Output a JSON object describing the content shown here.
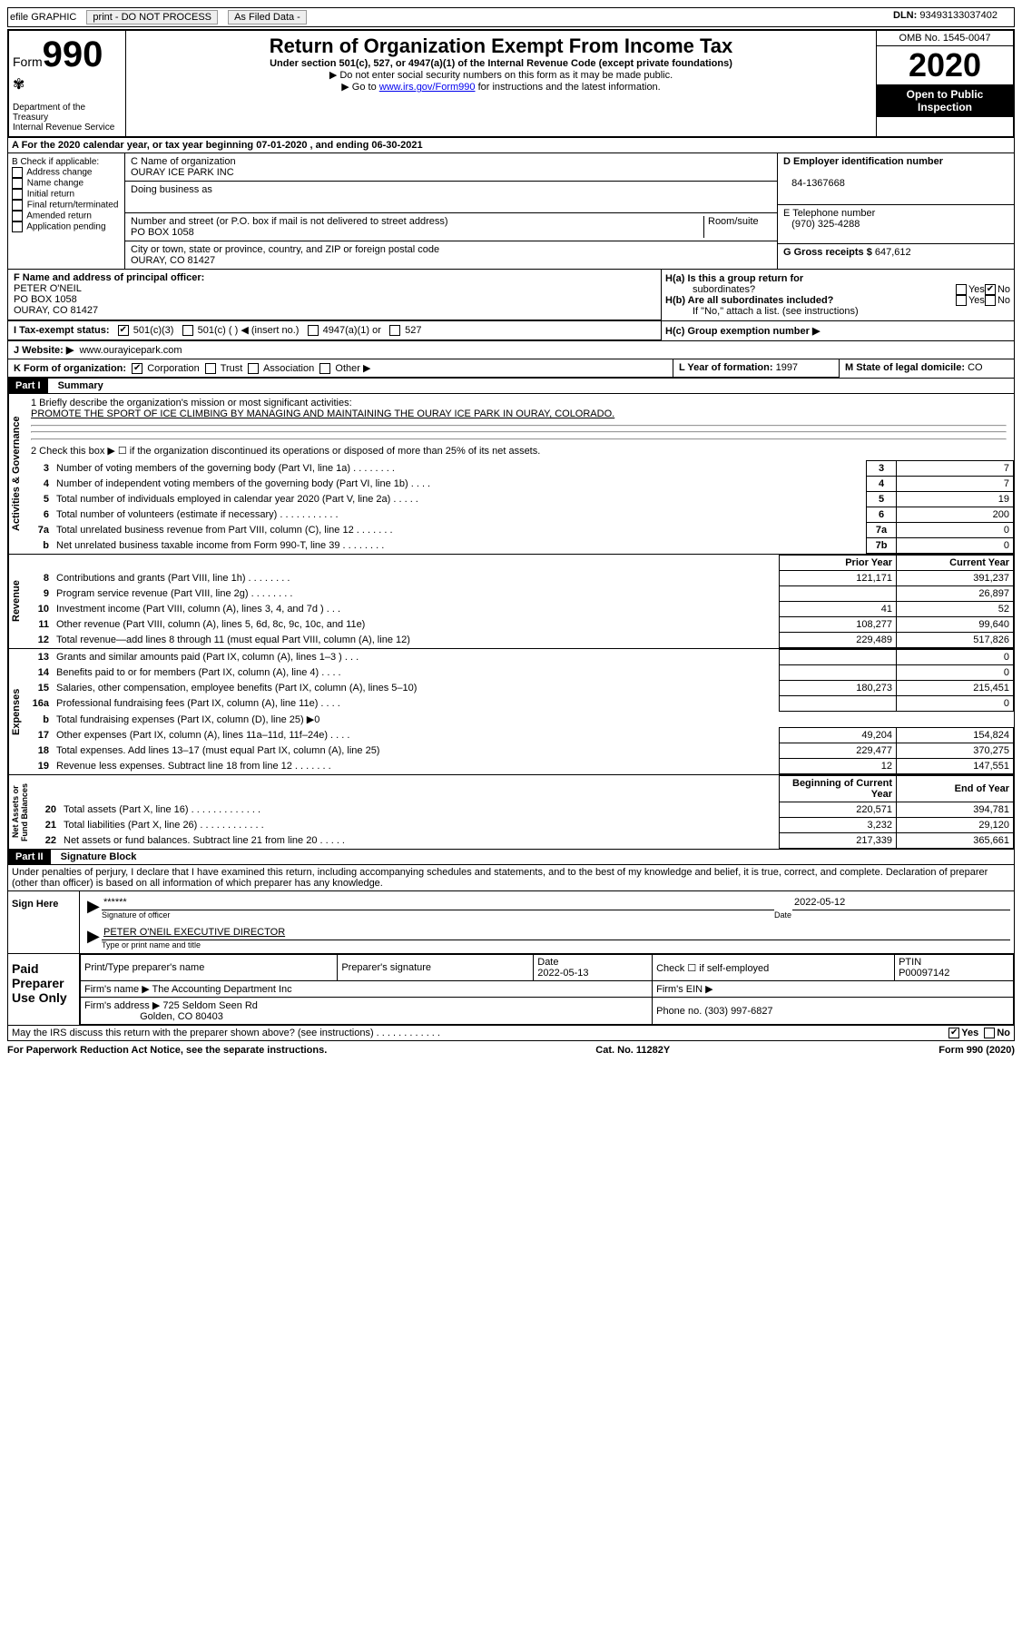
{
  "topbar": {
    "efile": "efile GRAPHIC",
    "print": "print - DO NOT PROCESS",
    "asfiled": "As Filed Data -",
    "dln_label": "DLN:",
    "dln": "93493133037402"
  },
  "header": {
    "form_word": "Form",
    "form_num": "990",
    "dept": "Department of the Treasury\nInternal Revenue Service",
    "title": "Return of Organization Exempt From Income Tax",
    "sub1": "Under section 501(c), 527, or 4947(a)(1) of the Internal Revenue Code (except private foundations)",
    "sub2": "▶ Do not enter social security numbers on this form as it may be made public.",
    "sub3_pre": "▶ Go to ",
    "sub3_link": "www.irs.gov/Form990",
    "sub3_post": " for instructions and the latest information.",
    "omb": "OMB No. 1545-0047",
    "year": "2020",
    "open": "Open to Public Inspection"
  },
  "rowA": "A   For the 2020 calendar year, or tax year beginning 07-01-2020    , and ending 06-30-2021",
  "boxB": {
    "hdr": "B Check if applicable:",
    "items": [
      "Address change",
      "Name change",
      "Initial return",
      "Final return/terminated",
      "Amended return",
      "Application pending"
    ]
  },
  "boxC": {
    "label": "C Name of organization",
    "name": "OURAY ICE PARK INC",
    "dba": "Doing business as",
    "street_label": "Number and street (or P.O. box if mail is not delivered to street address)",
    "room": "Room/suite",
    "street": "PO BOX 1058",
    "city_label": "City or town, state or province, country, and ZIP or foreign postal code",
    "city": "OURAY, CO  81427"
  },
  "boxD": {
    "label": "D Employer identification number",
    "val": "84-1367668"
  },
  "boxE": {
    "label": "E Telephone number",
    "val": "(970) 325-4288"
  },
  "boxG": {
    "label": "G Gross receipts $",
    "val": "647,612"
  },
  "boxF": {
    "label": "F  Name and address of principal officer:",
    "l1": "PETER O'NEIL",
    "l2": "PO BOX 1058",
    "l3": "OURAY, CO  81427"
  },
  "boxH": {
    "ha": "H(a)  Is this a group return for",
    "ha2": "subordinates?",
    "yes": "Yes",
    "no": "No",
    "hb": "H(b)  Are all subordinates included?",
    "hnote": "If \"No,\" attach a list. (see instructions)",
    "hc": "H(c)  Group exemption number ▶"
  },
  "rowI": {
    "label": "I   Tax-exempt status:",
    "o1": "501(c)(3)",
    "o2": "501(c) (  ) ◀ (insert no.)",
    "o3": "4947(a)(1) or",
    "o4": "527"
  },
  "rowJ": {
    "label": "J   Website: ▶",
    "val": "www.ourayicepark.com"
  },
  "rowK": {
    "label": "K Form of organization:",
    "o1": "Corporation",
    "o2": "Trust",
    "o3": "Association",
    "o4": "Other ▶"
  },
  "rowL": {
    "label": "L Year of formation:",
    "val": "1997"
  },
  "rowM": {
    "label": "M State of legal domicile:",
    "val": "CO"
  },
  "partI": {
    "hdr": "Part I",
    "title": "Summary"
  },
  "line1": {
    "a": "1 Briefly describe the organization's mission or most significant activities:",
    "b": "PROMOTE THE SPORT OF ICE CLIMBING BY MANAGING AND MAINTAINING THE OURAY ICE PARK IN OURAY, COLORADO."
  },
  "line2": "2   Check this box ▶ ☐  if the organization discontinued its operations or disposed of more than 25% of its net assets.",
  "govRows": [
    {
      "n": "3",
      "t": "Number of voting members of the governing body (Part VI, line 1a)   .    .    .    .    .    .    .    .",
      "b": "3",
      "v": "7"
    },
    {
      "n": "4",
      "t": "Number of independent voting members of the governing body (Part VI, line 1b)    .    .    .    .",
      "b": "4",
      "v": "7"
    },
    {
      "n": "5",
      "t": "Total number of individuals employed in calendar year 2020 (Part V, line 2a)   .    .    .    .    .",
      "b": "5",
      "v": "19"
    },
    {
      "n": "6",
      "t": "Total number of volunteers (estimate if necessary)    .    .    .    .    .    .    .    .    .    .    .",
      "b": "6",
      "v": "200"
    },
    {
      "n": "7a",
      "t": "Total unrelated business revenue from Part VIII, column (C), line 12   .    .    .    .    .    .    .",
      "b": "7a",
      "v": "0"
    },
    {
      "n": "b",
      "t": "Net unrelated business taxable income from Form 990-T, line 39    .    .    .    .    .    .    .    .",
      "b": "7b",
      "v": "0"
    }
  ],
  "revHdr": {
    "py": "Prior Year",
    "cy": "Current Year"
  },
  "revRows": [
    {
      "n": "8",
      "t": "Contributions and grants (Part VIII, line 1h)    .    .    .    .    .    .    .    .",
      "p": "121,171",
      "c": "391,237"
    },
    {
      "n": "9",
      "t": "Program service revenue (Part VIII, line 2g)    .    .    .    .    .    .    .    .",
      "p": "",
      "c": "26,897"
    },
    {
      "n": "10",
      "t": "Investment income (Part VIII, column (A), lines 3, 4, and 7d )   .    .    .",
      "p": "41",
      "c": "52"
    },
    {
      "n": "11",
      "t": "Other revenue (Part VIII, column (A), lines 5, 6d, 8c, 9c, 10c, and 11e)",
      "p": "108,277",
      "c": "99,640"
    },
    {
      "n": "12",
      "t": "Total revenue—add lines 8 through 11 (must equal Part VIII, column (A), line 12)",
      "p": "229,489",
      "c": "517,826"
    }
  ],
  "expRows": [
    {
      "n": "13",
      "t": "Grants and similar amounts paid (Part IX, column (A), lines 1–3 )   .    .    .",
      "p": "",
      "c": "0"
    },
    {
      "n": "14",
      "t": "Benefits paid to or for members (Part IX, column (A), line 4)    .    .    .    .",
      "p": "",
      "c": "0"
    },
    {
      "n": "15",
      "t": "Salaries, other compensation, employee benefits (Part IX, column (A), lines 5–10)",
      "p": "180,273",
      "c": "215,451"
    },
    {
      "n": "16a",
      "t": "Professional fundraising fees (Part IX, column (A), line 11e)    .    .    .    .",
      "p": "",
      "c": "0"
    },
    {
      "n": "b",
      "t": "Total fundraising expenses (Part IX, column (D), line 25) ▶0",
      "p": null,
      "c": null
    },
    {
      "n": "17",
      "t": "Other expenses (Part IX, column (A), lines 11a–11d, 11f–24e)   .    .    .    .",
      "p": "49,204",
      "c": "154,824"
    },
    {
      "n": "18",
      "t": "Total expenses. Add lines 13–17 (must equal Part IX, column (A), line 25)",
      "p": "229,477",
      "c": "370,275"
    },
    {
      "n": "19",
      "t": "Revenue less expenses. Subtract line 18 from line 12 .    .    .    .    .    .    .",
      "p": "12",
      "c": "147,551"
    }
  ],
  "naHdr": {
    "b": "Beginning of Current Year",
    "e": "End of Year"
  },
  "naRows": [
    {
      "n": "20",
      "t": "Total assets (Part X, line 16)   .    .    .    .    .    .    .    .    .    .    .    .    .",
      "p": "220,571",
      "c": "394,781"
    },
    {
      "n": "21",
      "t": "Total liabilities (Part X, line 26)    .    .    .    .    .    .    .    .    .    .    .    .",
      "p": "3,232",
      "c": "29,120"
    },
    {
      "n": "22",
      "t": "Net assets or fund balances. Subtract line 21 from line 20 .    .    .    .    .",
      "p": "217,339",
      "c": "365,661"
    }
  ],
  "sections": {
    "gov": "Activities & Governance",
    "rev": "Revenue",
    "exp": "Expenses",
    "na": "Net Assets or\nFund Balances"
  },
  "partII": {
    "hdr": "Part II",
    "title": "Signature Block",
    "perjury": "Under penalties of perjury, I declare that I have examined this return, including accompanying schedules and statements, and to the best of my knowledge and belief, it is true, correct, and complete. Declaration of preparer (other than officer) is based on all information of which preparer has any knowledge."
  },
  "sign": {
    "here": "Sign Here",
    "stars": "******",
    "sig_of": "Signature of officer",
    "date_l": "Date",
    "date": "2022-05-12",
    "name": "PETER O'NEIL  EXECUTIVE DIRECTOR",
    "name_l": "Type or print name and title"
  },
  "paid": {
    "hdr": "Paid Preparer Use Only",
    "c1": "Print/Type preparer's name",
    "c2": "Preparer's signature",
    "c3": "Date",
    "c3v": "2022-05-13",
    "c4": "Check ☐ if self-employed",
    "c5": "PTIN",
    "c5v": "P00097142",
    "firm_l": "Firm's name   ▶",
    "firm": "The Accounting Department Inc",
    "ein_l": "Firm's EIN ▶",
    "addr_l": "Firm's address ▶",
    "addr1": "725 Seldom Seen Rd",
    "addr2": "Golden, CO  80403",
    "phone_l": "Phone no.",
    "phone": "(303) 997-6827"
  },
  "discuss": "May the IRS discuss this return with the preparer shown above? (see instructions)   .    .    .    .    .    .    .    .    .    .    .    .",
  "footer": {
    "l": "For Paperwork Reduction Act Notice, see the separate instructions.",
    "m": "Cat. No. 11282Y",
    "r": "Form 990 (2020)"
  }
}
